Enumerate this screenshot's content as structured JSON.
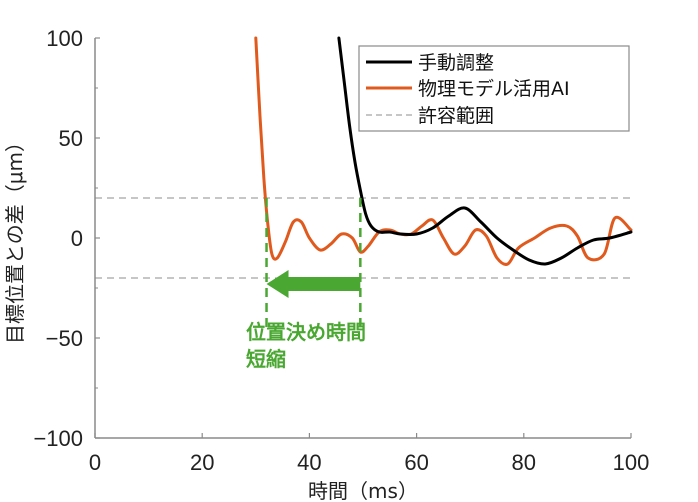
{
  "chart_data": {
    "type": "line",
    "title": "",
    "xlabel": "時間（ms）",
    "ylabel": "目標位置との差（μm）",
    "xlim": [
      0,
      100
    ],
    "ylim": [
      -100,
      100
    ],
    "xticks": [
      0,
      20,
      40,
      60,
      80,
      100
    ],
    "yticks": [
      -100,
      -50,
      0,
      50,
      100
    ],
    "xtick_labels": [
      "0",
      "20",
      "40",
      "60",
      "80",
      "100"
    ],
    "ytick_labels": [
      "−100",
      "−50",
      "0",
      "50",
      "100"
    ],
    "grid": false,
    "legend_position": "upper right",
    "series": [
      {
        "name": "手動調整",
        "color": "#000000",
        "style": "solid",
        "x": [
          45.5,
          46.5,
          47.5,
          48.5,
          49.5,
          50.5,
          51.5,
          53,
          55,
          57,
          60,
          63,
          66,
          69,
          72,
          75,
          78,
          81,
          84,
          87,
          90,
          93,
          96,
          100
        ],
        "y": [
          100,
          78,
          56,
          38,
          24,
          12,
          6,
          3,
          3,
          2,
          2,
          5,
          11,
          15,
          8,
          0,
          -6,
          -11,
          -13,
          -10,
          -5,
          -1,
          0,
          3
        ]
      },
      {
        "name": "物理モデル活用AI",
        "color": "#e05a1e",
        "style": "solid",
        "x": [
          30.0,
          30.8,
          31.5,
          32.2,
          33.0,
          34.0,
          35.5,
          37.0,
          38.5,
          40.0,
          42.0,
          44.0,
          46.0,
          48.0,
          49.5,
          51.0,
          53.0,
          55.0,
          57.0,
          59.0,
          61.0,
          63.0,
          65.0,
          67.0,
          69.0,
          71.0,
          73.0,
          75.0,
          77.0,
          79.0,
          82.0,
          85.0,
          88.0,
          90.0,
          92.0,
          95.0,
          97.0,
          100.0
        ],
        "y": [
          100,
          60,
          30,
          8,
          -8,
          -10,
          -2,
          8,
          8,
          0,
          -6,
          -3,
          2,
          0,
          -7,
          -4,
          3,
          4,
          2,
          2,
          6,
          9,
          0,
          -8,
          -4,
          4,
          1,
          -10,
          -13,
          -5,
          0,
          5,
          6,
          1,
          -10,
          -8,
          10,
          4
        ]
      },
      {
        "name": "許容範囲",
        "color": "#8c8c8c",
        "style": "dashed",
        "values_y": [
          20,
          -20
        ]
      }
    ],
    "annotations": [
      {
        "type": "double-dashed-vlines-with-arrow",
        "color": "#4aa832",
        "x_from": 49.5,
        "x_to": 32.0,
        "arrow_y": -23,
        "text_lines": [
          "位置決め時間",
          "短縮"
        ]
      }
    ]
  },
  "legend": {
    "items": [
      "手動調整",
      "物理モデル活用AI",
      "許容範囲"
    ]
  },
  "annotation": {
    "line1": "位置決め時間",
    "line2": "短縮"
  },
  "axes": {
    "xlabel": "時間（ms）",
    "ylabel": "目標位置との差（μm）",
    "yticks": [
      "100",
      "50",
      "0",
      "−50",
      "−100"
    ],
    "xticks": [
      "0",
      "20",
      "40",
      "60",
      "80",
      "100"
    ]
  }
}
